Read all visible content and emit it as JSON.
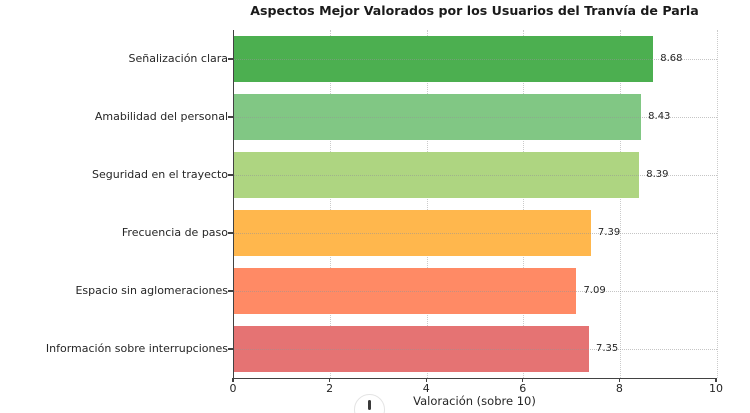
{
  "title": "Aspectos Mejor Valorados por los Usuarios del Tranvía de Parla",
  "chart_data": {
    "type": "bar",
    "orientation": "horizontal",
    "title": "Aspectos Mejor Valorados por los Usuarios del Tranvía de Parla",
    "categories": [
      "Señalización clara",
      "Amabilidad del personal",
      "Seguridad en el trayecto",
      "Frecuencia de paso",
      "Espacio sin aglomeraciones",
      "Información sobre interrupciones"
    ],
    "values": [
      8.68,
      8.43,
      8.39,
      7.39,
      7.09,
      7.35
    ],
    "value_labels": [
      "8.68",
      "8.43",
      "8.39",
      "7.39",
      "7.09",
      "7.35"
    ],
    "bar_colors": [
      "#4caf50",
      "#81c784",
      "#aed581",
      "#ffb74d",
      "#ff8a65",
      "#e57373"
    ],
    "xlabel": "Valoración (sobre 10)",
    "ylabel": "",
    "xlim": [
      0,
      10
    ],
    "x_ticks": [
      0,
      2,
      4,
      6,
      8,
      10
    ],
    "grid": "dotted, light gray, both axes",
    "legend": "none"
  },
  "colors": {
    "background": "#ffffff",
    "axis": "#424242",
    "grid": "#cbcbcb",
    "text": "#262626",
    "title": "#1a1a1a"
  },
  "icons": {
    "bottom_clipped": "clipped-circle-icon"
  }
}
